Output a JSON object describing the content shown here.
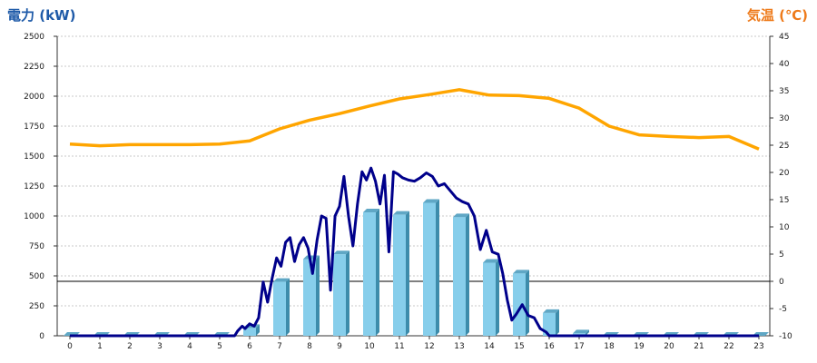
{
  "chart_data": {
    "type": "bar",
    "titles": {
      "left": "電力 (kW)",
      "right": "気温 (℃)"
    },
    "x": {
      "categories": [
        "0",
        "1",
        "2",
        "3",
        "4",
        "5",
        "6",
        "7",
        "8",
        "9",
        "10",
        "11",
        "12",
        "13",
        "14",
        "15",
        "16",
        "17",
        "18",
        "19",
        "20",
        "21",
        "22",
        "23"
      ]
    },
    "y_left": {
      "min": 0,
      "max": 2500,
      "ticks": [
        0,
        250,
        500,
        750,
        1000,
        1250,
        1500,
        1750,
        2000,
        2250,
        2500
      ]
    },
    "y_right": {
      "min": -10,
      "max": 45,
      "ticks": [
        -10,
        -5,
        0,
        5,
        10,
        15,
        20,
        25,
        30,
        35,
        40,
        45
      ]
    },
    "grid": true,
    "colors": {
      "bar": "#87ceeb",
      "power_line": "#00008b",
      "temp_line": "#ffa500",
      "title_left": "#1e5aa8",
      "title_right": "#ee7a1a"
    },
    "series": [
      {
        "type": "bar",
        "axis": "left",
        "values": [
          0,
          0,
          0,
          0,
          0,
          0,
          65,
          450,
          640,
          680,
          1030,
          1010,
          1110,
          990,
          610,
          520,
          190,
          20,
          0,
          0,
          0,
          0,
          0,
          0
        ]
      },
      {
        "type": "line",
        "axis": "left",
        "points": [
          [
            0,
            0
          ],
          [
            5,
            0
          ],
          [
            5.5,
            0
          ],
          [
            5.6,
            40
          ],
          [
            5.75,
            80
          ],
          [
            5.85,
            60
          ],
          [
            6,
            100
          ],
          [
            6.15,
            80
          ],
          [
            6.3,
            150
          ],
          [
            6.45,
            450
          ],
          [
            6.6,
            280
          ],
          [
            6.75,
            480
          ],
          [
            6.9,
            650
          ],
          [
            7.05,
            580
          ],
          [
            7.2,
            780
          ],
          [
            7.35,
            820
          ],
          [
            7.5,
            620
          ],
          [
            7.65,
            760
          ],
          [
            7.8,
            820
          ],
          [
            7.95,
            730
          ],
          [
            8.1,
            520
          ],
          [
            8.25,
            800
          ],
          [
            8.4,
            1000
          ],
          [
            8.55,
            980
          ],
          [
            8.7,
            380
          ],
          [
            8.85,
            1000
          ],
          [
            9.0,
            1080
          ],
          [
            9.15,
            1330
          ],
          [
            9.3,
            1000
          ],
          [
            9.45,
            750
          ],
          [
            9.6,
            1100
          ],
          [
            9.75,
            1370
          ],
          [
            9.9,
            1300
          ],
          [
            10.05,
            1400
          ],
          [
            10.2,
            1290
          ],
          [
            10.35,
            1100
          ],
          [
            10.5,
            1340
          ],
          [
            10.65,
            700
          ],
          [
            10.8,
            1370
          ],
          [
            10.95,
            1350
          ],
          [
            11.1,
            1320
          ],
          [
            11.3,
            1300
          ],
          [
            11.5,
            1290
          ],
          [
            11.7,
            1320
          ],
          [
            11.9,
            1360
          ],
          [
            12.1,
            1330
          ],
          [
            12.3,
            1250
          ],
          [
            12.5,
            1270
          ],
          [
            12.7,
            1210
          ],
          [
            12.9,
            1150
          ],
          [
            13.1,
            1120
          ],
          [
            13.3,
            1100
          ],
          [
            13.5,
            1000
          ],
          [
            13.7,
            720
          ],
          [
            13.9,
            880
          ],
          [
            14.1,
            700
          ],
          [
            14.3,
            680
          ],
          [
            14.45,
            520
          ],
          [
            14.6,
            300
          ],
          [
            14.75,
            130
          ],
          [
            14.9,
            180
          ],
          [
            15.1,
            260
          ],
          [
            15.3,
            170
          ],
          [
            15.5,
            150
          ],
          [
            15.7,
            60
          ],
          [
            15.9,
            30
          ],
          [
            16,
            0
          ],
          [
            23,
            0
          ]
        ]
      },
      {
        "type": "line",
        "axis": "right",
        "values": [
          25.2,
          24.9,
          25.1,
          25.1,
          25.1,
          25.2,
          25.8,
          28,
          29.6,
          30.8,
          32.2,
          33.5,
          34.3,
          35.2,
          34.2,
          34.1,
          33.6,
          31.8,
          28.5,
          26.9,
          26.6,
          26.4,
          26.6,
          24.3
        ]
      }
    ]
  }
}
